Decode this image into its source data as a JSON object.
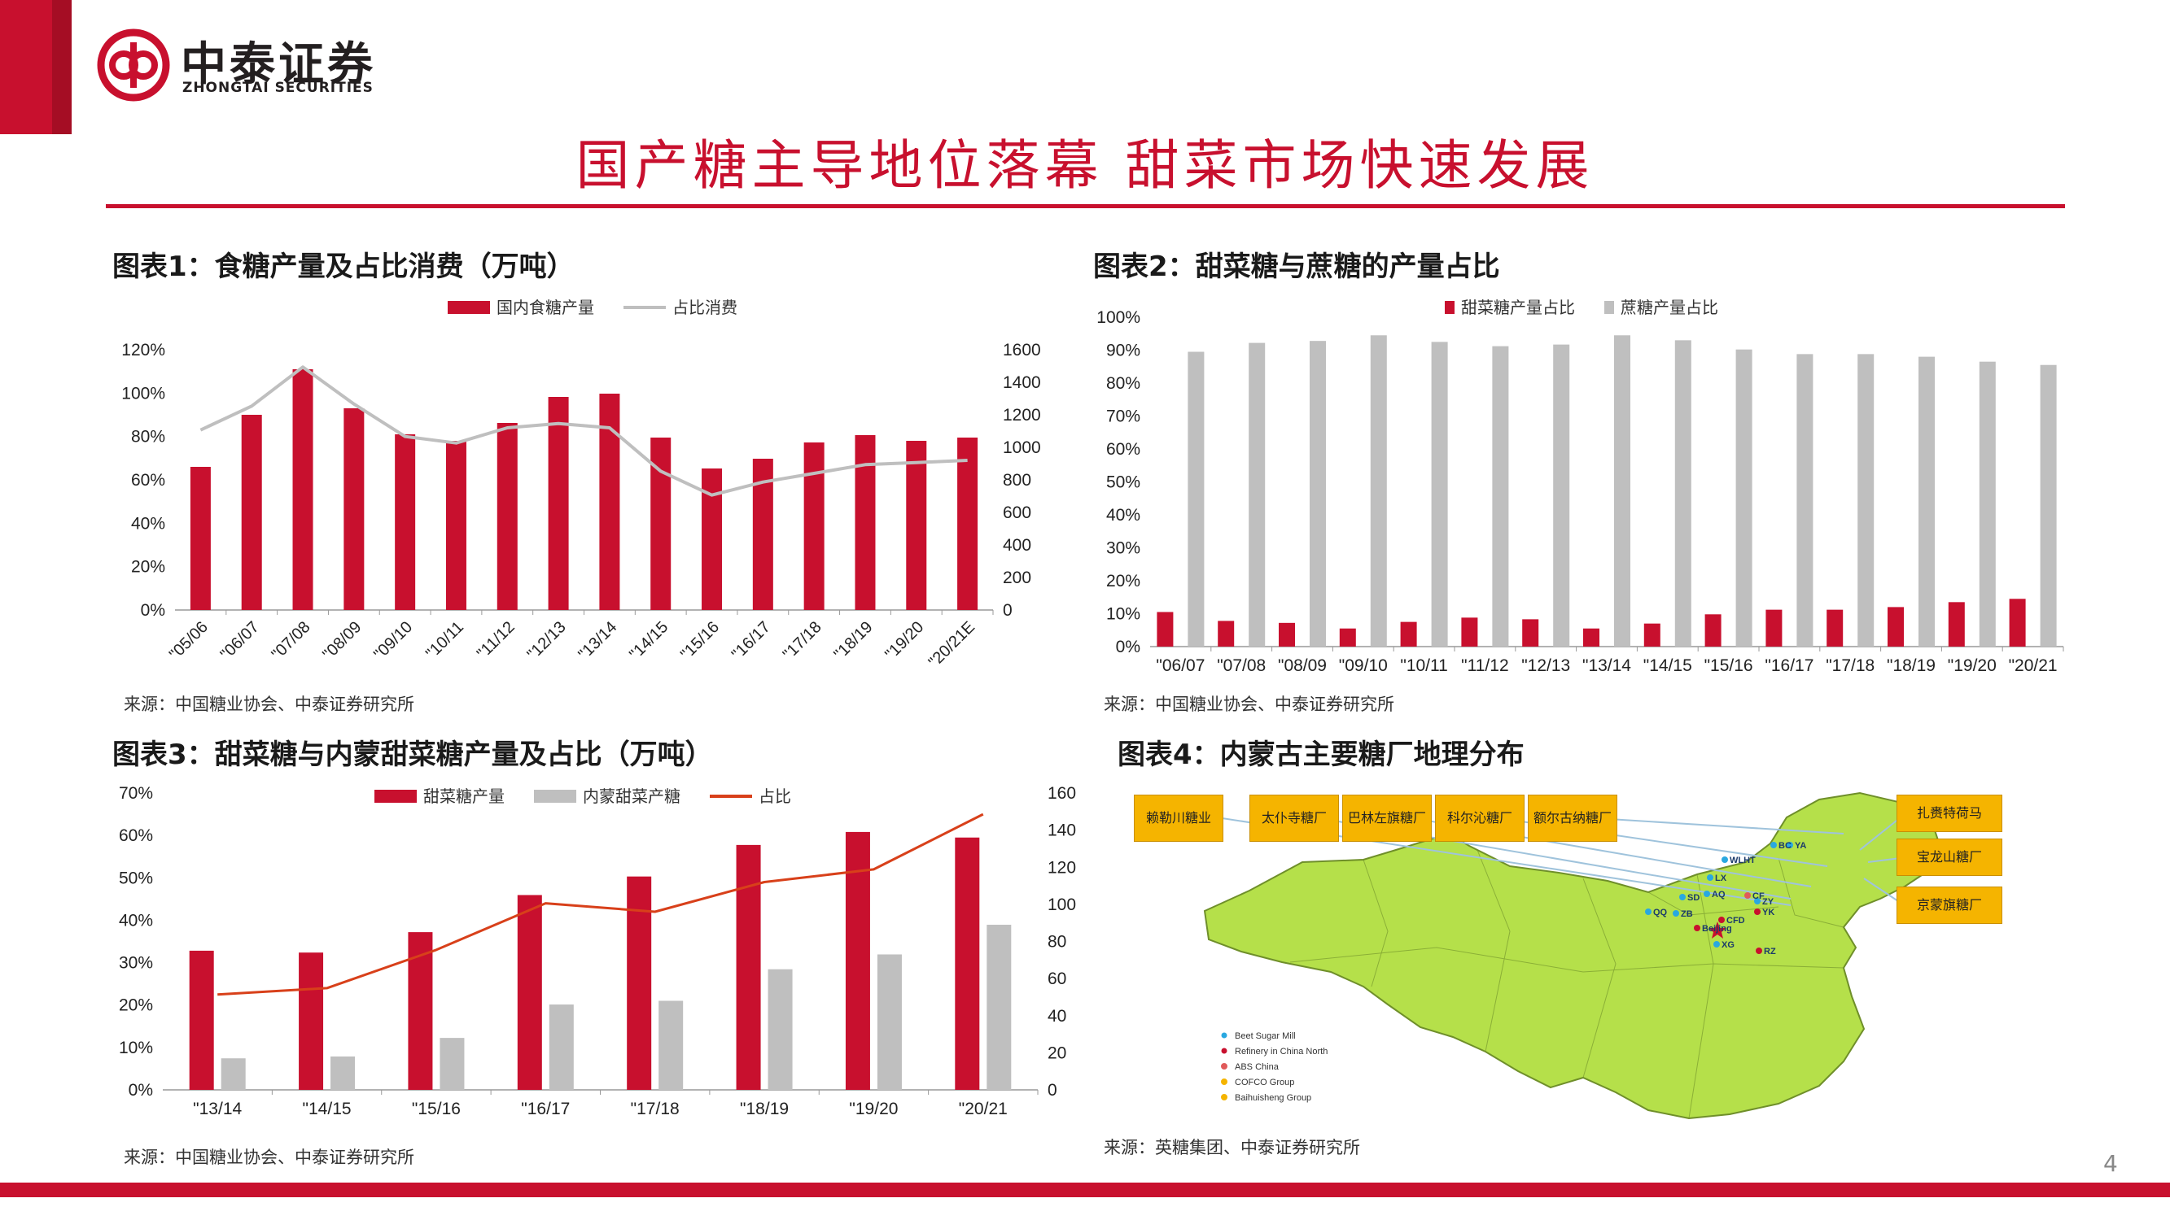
{
  "brand": {
    "name_cn": "中泰证券",
    "name_en": "ZHONGTAI SECURITIES",
    "color": "#c8102e"
  },
  "page_title": "国产糖主导地位落幕 甜菜市场快速发展",
  "page_number": "4",
  "chart1": {
    "title": "图表1：食糖产量及占比消费（万吨）",
    "source": "来源：中国糖业协会、中泰证券研究所"
  },
  "chart2": {
    "title": "图表2：甜菜糖与蔗糖的产量占比",
    "source": "来源：中国糖业协会、中泰证券研究所"
  },
  "chart3": {
    "title": "图表3：甜菜糖与内蒙甜菜糖产量及占比（万吨）",
    "source": "来源：中国糖业协会、中泰证券研究所"
  },
  "chart4": {
    "title": "图表4：内蒙古主要糖厂地理分布",
    "source": "来源：英糖集团、中泰证券研究所",
    "factory_labels": [
      "赖勒川糖业",
      "太仆寺糖厂",
      "巴林左旗糖厂",
      "科尔沁糖厂",
      "额尔古纳糖厂",
      "扎赉特荷马",
      "宝龙山糖厂",
      "京蒙旗糖厂"
    ],
    "city_codes": [
      "BC",
      "YA",
      "WLHT",
      "LX",
      "AQ",
      "CF",
      "SD",
      "ZY",
      "QQ",
      "ZB",
      "YK",
      "CFD",
      "Beijing",
      "XG",
      "RZ"
    ],
    "map_legend": [
      "Beet Sugar Mill",
      "Refinery in China North",
      "ABS China",
      "COFCO Group",
      "Baihuisheng Group"
    ],
    "legend_colors": [
      "#29a8e0",
      "#c8102e",
      "#e05a5a",
      "#f5b400",
      "#f5b400"
    ],
    "map_fill": "#b5e04a"
  },
  "chart_data": [
    {
      "type": "bar",
      "title": "",
      "categories": [
        "\"05/06",
        "\"06/07",
        "\"07/08",
        "\"08/09",
        "\"09/10",
        "\"10/11",
        "\"11/12",
        "\"12/13",
        "\"13/14",
        "\"14/15",
        "\"15/16",
        "\"16/17",
        "\"17/18",
        "\"18/19",
        "\"19/20",
        "\"20/21E"
      ],
      "series": [
        {
          "name": "国内食糖产量",
          "kind": "bar",
          "axis": "right",
          "color": "#c8102e",
          "values": [
            880,
            1200,
            1480,
            1240,
            1080,
            1040,
            1150,
            1310,
            1330,
            1060,
            870,
            930,
            1030,
            1075,
            1040,
            1060
          ]
        },
        {
          "name": "占比消费",
          "kind": "line",
          "axis": "left",
          "color": "#bfbfbf",
          "values": [
            83,
            94,
            112,
            95,
            80,
            77,
            84,
            86,
            84,
            64,
            53,
            59,
            63,
            67,
            68,
            69
          ]
        }
      ],
      "ylim_left": [
        0,
        120
      ],
      "yticks_left": [
        "0%",
        "20%",
        "40%",
        "60%",
        "80%",
        "100%",
        "120%"
      ],
      "ylim_right": [
        0,
        1600
      ],
      "yticks_right": [
        "0",
        "200",
        "400",
        "600",
        "800",
        "1000",
        "1200",
        "1400",
        "1600"
      ],
      "legend_position": "top"
    },
    {
      "type": "bar",
      "title": "",
      "categories": [
        "\"06/07",
        "\"07/08",
        "\"08/09",
        "\"09/10",
        "\"10/11",
        "\"11/12",
        "\"12/13",
        "\"13/14",
        "\"14/15",
        "\"15/16",
        "\"16/17",
        "\"17/18",
        "\"18/19",
        "\"19/20",
        "\"20/21"
      ],
      "series": [
        {
          "name": "甜菜糖产量占比",
          "color": "#c8102e",
          "values": [
            10.5,
            7.8,
            7.2,
            5.5,
            7.5,
            8.8,
            8.3,
            5.5,
            7.0,
            9.8,
            11.2,
            11.2,
            12.0,
            13.5,
            14.5
          ]
        },
        {
          "name": "蔗糖产量占比",
          "color": "#bfbfbf",
          "values": [
            89.5,
            92.2,
            92.8,
            94.5,
            92.5,
            91.2,
            91.7,
            94.5,
            93.0,
            90.2,
            88.8,
            88.8,
            88.0,
            86.5,
            85.5
          ]
        }
      ],
      "ylim": [
        0,
        100
      ],
      "yticks": [
        "0%",
        "10%",
        "20%",
        "30%",
        "40%",
        "50%",
        "60%",
        "70%",
        "80%",
        "90%",
        "100%"
      ],
      "legend_position": "top"
    },
    {
      "type": "bar",
      "title": "",
      "categories": [
        "\"13/14",
        "\"14/15",
        "\"15/16",
        "\"16/17",
        "\"17/18",
        "\"18/19",
        "\"19/20",
        "\"20/21"
      ],
      "series": [
        {
          "name": "甜菜糖产量",
          "kind": "bar",
          "axis": "right",
          "color": "#c8102e",
          "values": [
            75,
            74,
            85,
            105,
            115,
            132,
            139,
            136
          ]
        },
        {
          "name": "内蒙甜菜产糖",
          "kind": "bar",
          "axis": "right",
          "color": "#bfbfbf",
          "values": [
            17,
            18,
            28,
            46,
            48,
            65,
            73,
            89
          ]
        },
        {
          "name": "占比",
          "kind": "line",
          "axis": "left",
          "color": "#d8401a",
          "values": [
            22.5,
            24,
            33,
            44,
            42,
            49,
            52,
            65
          ]
        }
      ],
      "ylim_left": [
        0,
        70
      ],
      "yticks_left": [
        "0%",
        "10%",
        "20%",
        "30%",
        "40%",
        "50%",
        "60%",
        "70%"
      ],
      "ylim_right": [
        0,
        160
      ],
      "yticks_right": [
        "0",
        "20",
        "40",
        "60",
        "80",
        "100",
        "120",
        "140",
        "160"
      ],
      "legend_position": "top"
    }
  ]
}
